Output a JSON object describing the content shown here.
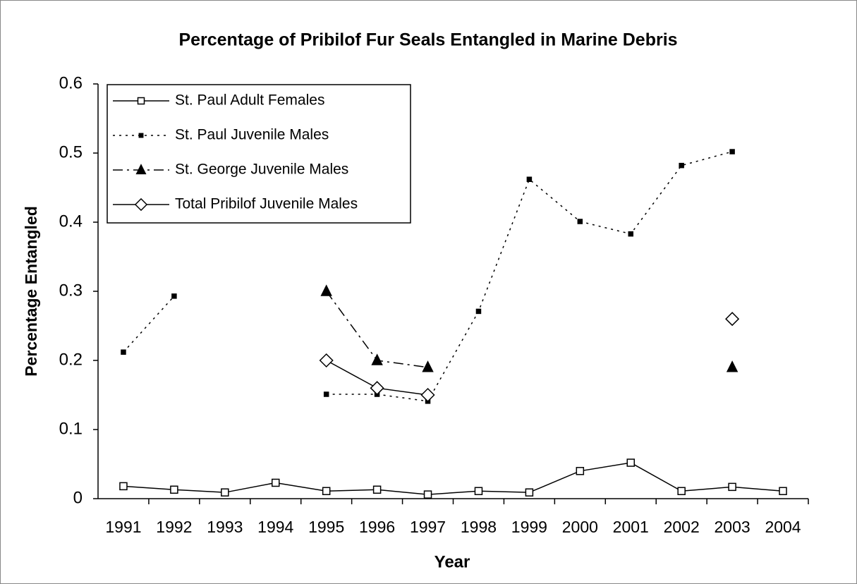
{
  "chart_data": {
    "type": "line",
    "title": "Percentage of Pribilof Fur Seals Entangled in Marine Debris",
    "x_label": "Year",
    "y_label": "Percentage Entangled",
    "categories": [
      "1991",
      "1992",
      "1993",
      "1994",
      "1995",
      "1996",
      "1997",
      "1998",
      "1999",
      "2000",
      "2001",
      "2002",
      "2003",
      "2004"
    ],
    "series": [
      {
        "name": "St. Paul Adult Females",
        "color": "#000000",
        "line_style": "solid",
        "marker": "square-open",
        "values": [
          0.018,
          0.013,
          0.009,
          0.023,
          0.011,
          0.013,
          0.006,
          0.011,
          0.009,
          0.04,
          0.052,
          0.011,
          0.017,
          0.011
        ]
      },
      {
        "name": "St. Paul Juvenile Males",
        "color": "#000000",
        "line_style": "dotted",
        "marker": "square-filled",
        "values": [
          0.212,
          0.293,
          null,
          null,
          0.151,
          0.151,
          0.141,
          0.271,
          0.462,
          0.401,
          0.383,
          0.482,
          0.502,
          null
        ]
      },
      {
        "name": "St. George Juvenile Males",
        "color": "#000000",
        "line_style": "dash-dot",
        "marker": "triangle-filled",
        "values": [
          null,
          null,
          null,
          null,
          0.3,
          0.2,
          0.19,
          null,
          null,
          null,
          null,
          null,
          0.19,
          null
        ]
      },
      {
        "name": "Total Pribilof Juvenile Males",
        "color": "#000000",
        "line_style": "solid",
        "marker": "diamond-open",
        "values": [
          null,
          null,
          null,
          null,
          0.2,
          0.16,
          0.15,
          null,
          null,
          null,
          null,
          null,
          0.26,
          null
        ]
      }
    ],
    "ylim": [
      0,
      0.6
    ],
    "yticks": [
      0,
      0.1,
      0.2,
      0.3,
      0.4,
      0.5,
      0.6
    ],
    "grid": false,
    "legend": "upper left"
  }
}
